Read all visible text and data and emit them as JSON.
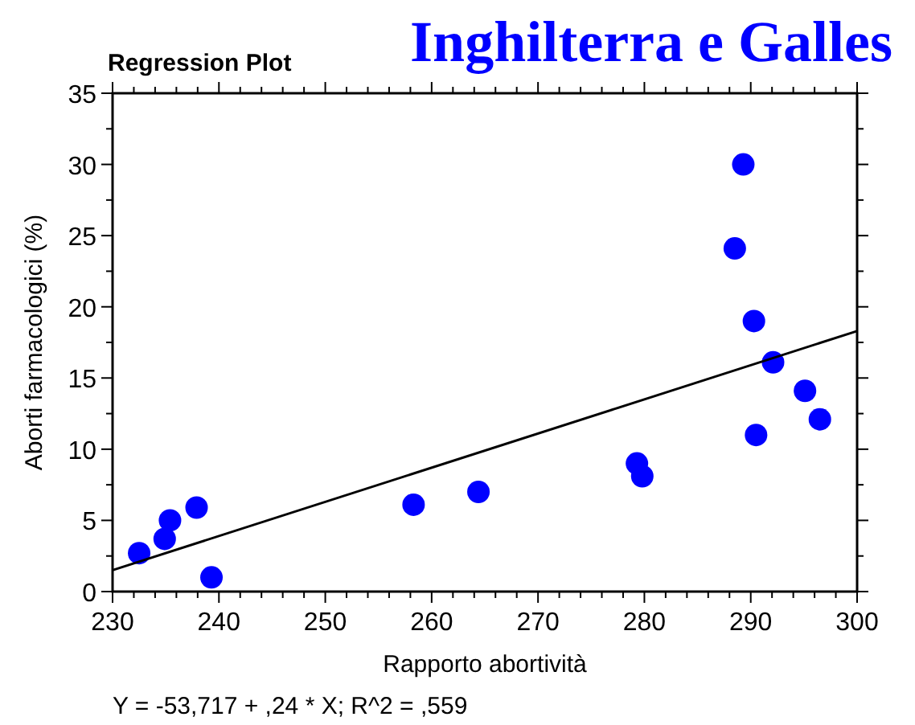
{
  "chart_data": {
    "type": "scatter",
    "title": "Regression Plot",
    "subtitle": "Inghilterra e Galles",
    "xlabel": "Rapporto abortività",
    "ylabel": "Aborti farmacologici (%)",
    "annotations": [
      "Y = -53,717 + ,24 * X; R^2 = ,559"
    ],
    "xlim": [
      230,
      300
    ],
    "ylim": [
      0,
      35
    ],
    "xticks": [
      230,
      {
        "value": 232,
        "label": null
      },
      {
        "value": 234,
        "label": null
      },
      {
        "value": 236,
        "label": null
      },
      {
        "value": 238,
        "label": null
      },
      240,
      {
        "value": 242,
        "label": null
      },
      {
        "value": 244,
        "label": null
      },
      {
        "value": 246,
        "label": null
      },
      {
        "value": 248,
        "label": null
      },
      250,
      {
        "value": 252,
        "label": null
      },
      {
        "value": 254,
        "label": null
      },
      {
        "value": 256,
        "label": null
      },
      {
        "value": 258,
        "label": null
      },
      260,
      {
        "value": 262,
        "label": null
      },
      {
        "value": 264,
        "label": null
      },
      {
        "value": 266,
        "label": null
      },
      {
        "value": 268,
        "label": null
      },
      270,
      {
        "value": 272,
        "label": null
      },
      {
        "value": 274,
        "label": null
      },
      {
        "value": 276,
        "label": null
      },
      {
        "value": 278,
        "label": null
      },
      280,
      {
        "value": 282,
        "label": null
      },
      {
        "value": 284,
        "label": null
      },
      {
        "value": 286,
        "label": null
      },
      {
        "value": 288,
        "label": null
      },
      290,
      {
        "value": 292,
        "label": null
      },
      {
        "value": 294,
        "label": null
      },
      {
        "value": 296,
        "label": null
      },
      {
        "value": 298,
        "label": null
      },
      300
    ],
    "yticks": [
      0,
      {
        "value": 2.5,
        "label": null
      },
      5,
      {
        "value": 7.5,
        "label": null
      },
      10,
      {
        "value": 12.5,
        "label": null
      },
      15,
      {
        "value": 17.5,
        "label": null
      },
      20,
      {
        "value": 22.5,
        "label": null
      },
      25,
      {
        "value": 27.5,
        "label": null
      },
      30,
      {
        "value": 32.5,
        "label": null
      },
      35
    ],
    "grid": false,
    "marker": "circle",
    "series": [
      {
        "color": "#0000ff",
        "x": [
          232.5,
          234.9,
          235.4,
          237.9,
          239.3,
          258.3,
          264.4,
          279.3,
          279.8,
          288.5,
          289.3,
          290.3,
          290.5,
          292.1,
          295.1,
          296.5
        ],
        "values": [
          2.7,
          3.7,
          5.0,
          5.9,
          1.0,
          6.1,
          7.0,
          9.0,
          8.1,
          24.1,
          30,
          19.0,
          11.0,
          16.1,
          14.1,
          12.1
        ]
      },
      {
        "type": "line",
        "color": "#000000",
        "marker": "none",
        "x": [
          230,
          300
        ],
        "values": [
          1.5,
          18.3
        ]
      }
    ]
  }
}
